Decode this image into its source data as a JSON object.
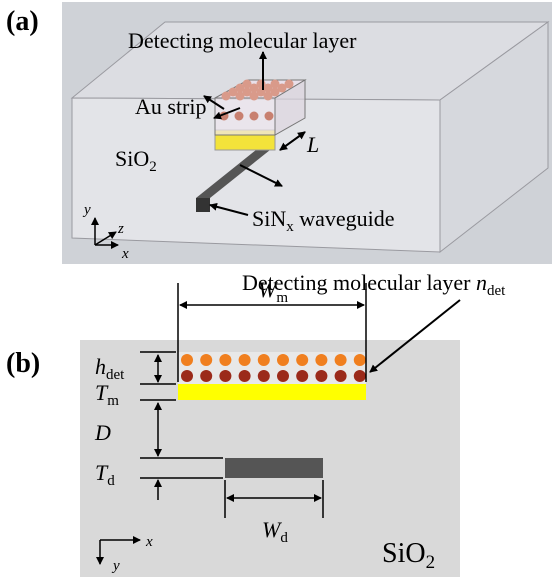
{
  "panel_a": {
    "label": "(a)",
    "molecular_layer": "Detecting molecular layer",
    "au_strip": "Au strip",
    "length": "L",
    "substrate": {
      "base": "SiO",
      "sub": "2"
    },
    "waveguide": {
      "base": "SiN",
      "sub": "x",
      "rest": " waveguide"
    },
    "axes": {
      "y": "y",
      "z": "z",
      "x": "x"
    }
  },
  "panel_b": {
    "label": "(b)",
    "molecular_layer": {
      "text": "Detecting molecular layer ",
      "symbol": "n",
      "sub": "det"
    },
    "wm": {
      "base": "W",
      "sub": "m"
    },
    "hdet": {
      "base": "h",
      "sub": "det"
    },
    "tm": {
      "base": "T",
      "sub": "m"
    },
    "d": "D",
    "td": {
      "base": "T",
      "sub": "d"
    },
    "wd": {
      "base": "W",
      "sub": "d"
    },
    "substrate": {
      "base": "SiO",
      "sub": "2"
    },
    "axes": {
      "x": "x",
      "y": "y"
    }
  }
}
